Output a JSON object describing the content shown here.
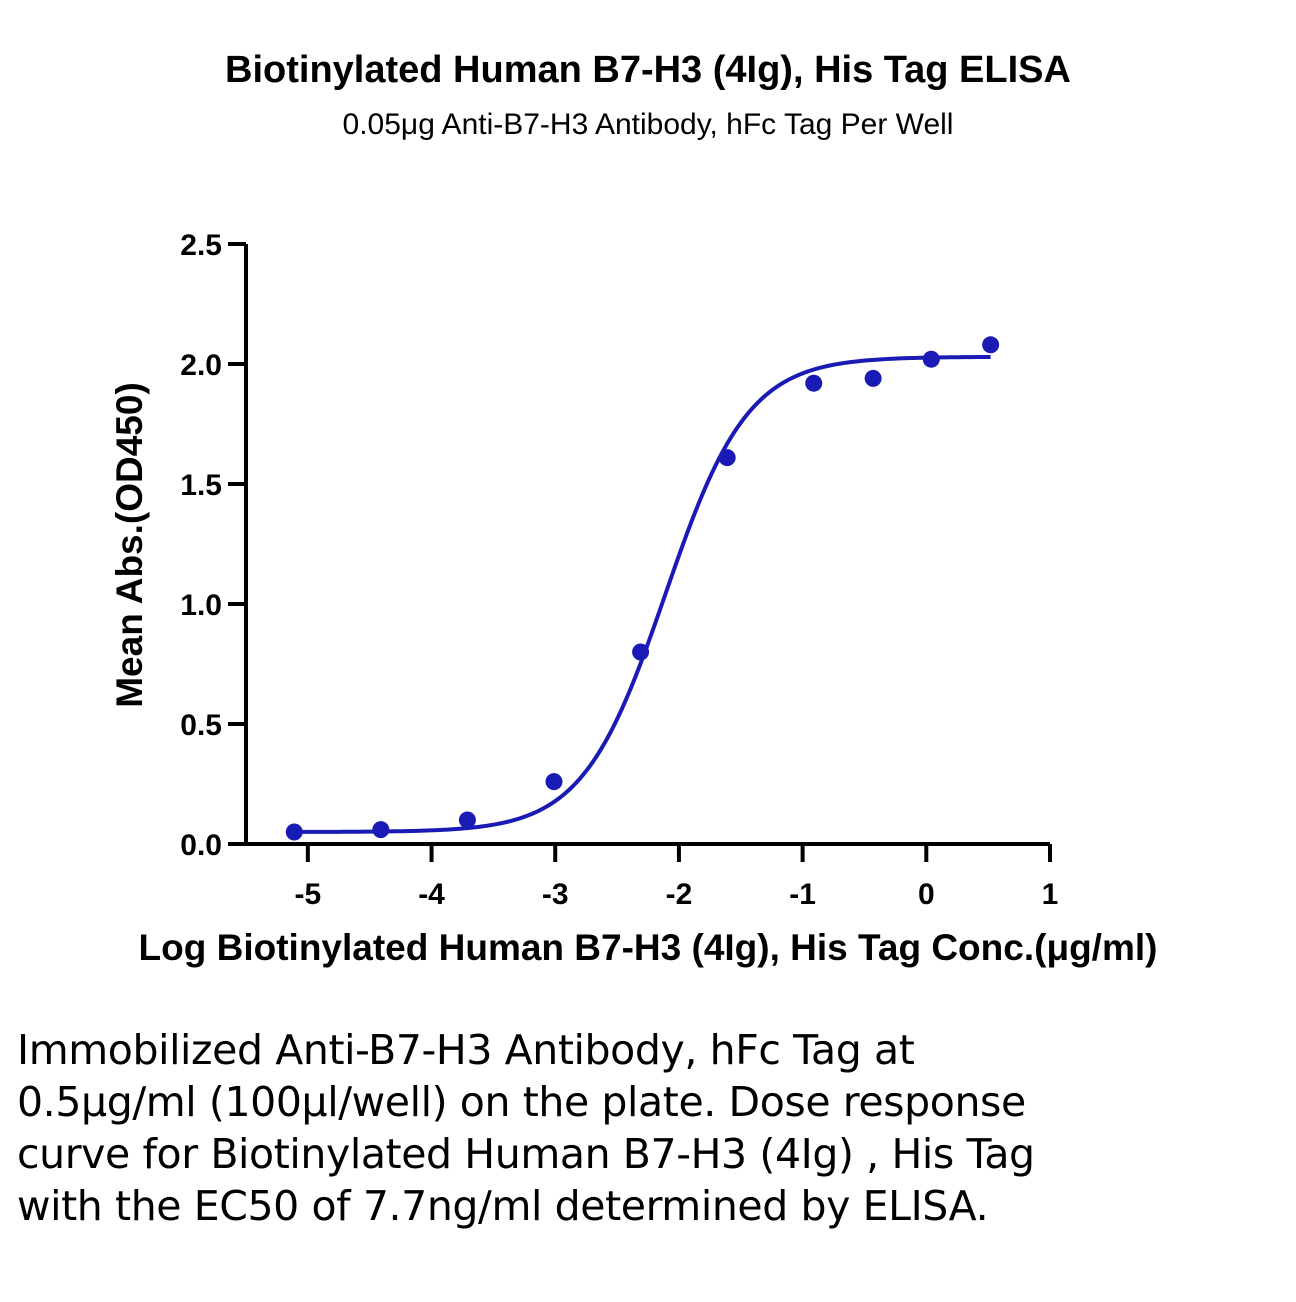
{
  "chart_data": {
    "type": "scatter",
    "title": "Biotinylated Human B7-H3 (4Ig), His Tag ELISA",
    "subtitle": "0.05μg Anti-B7-H3 Antibody, hFc Tag Per Well",
    "xlabel": "Log Biotinylated Human B7-H3 (4Ig), His Tag Conc.(μg/ml)",
    "ylabel": "Mean Abs.(OD450)",
    "xlim": [
      -5.5,
      1
    ],
    "ylim": [
      0,
      2.5
    ],
    "xticks": [
      "-5",
      "-4",
      "-3",
      "-2",
      "-1",
      "0",
      "1"
    ],
    "xtick_values": [
      -5,
      -4,
      -3,
      -2,
      -1,
      0,
      1
    ],
    "yticks": [
      "0.0",
      "0.5",
      "1.0",
      "1.5",
      "2.0",
      "2.5"
    ],
    "ytick_values": [
      0,
      0.5,
      1.0,
      1.5,
      2.0,
      2.5
    ],
    "grid": false,
    "color": "#1a1ab5",
    "points": {
      "x": [
        -5.11,
        -4.41,
        -3.71,
        -3.01,
        -2.31,
        -1.61,
        -0.91,
        -0.43,
        0.04,
        0.52
      ],
      "y": [
        0.05,
        0.06,
        0.1,
        0.26,
        0.8,
        1.61,
        1.92,
        1.94,
        2.02,
        2.08
      ]
    },
    "fit": {
      "model": "4PL",
      "bottom": 0.05,
      "top": 2.03,
      "log_ec50": -2.11,
      "hill": 1.3,
      "x_range": [
        -5.11,
        0.52
      ]
    }
  },
  "caption": "Immobilized Anti-B7-H3 Antibody, hFc Tag at 0.5μg/ml (100μl/well) on the plate. Dose response curve for Biotinylated Human B7-H3 (4Ig) , His Tag with the EC50 of 7.7ng/ml determined by ELISA."
}
